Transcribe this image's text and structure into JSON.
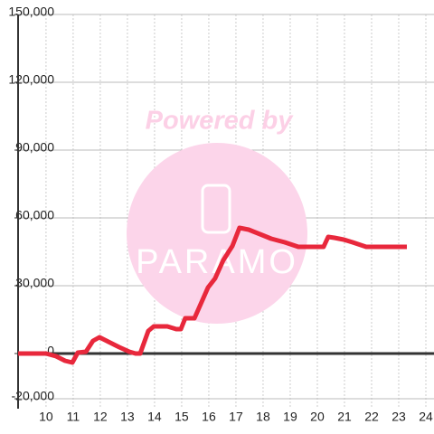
{
  "chart_data": {
    "type": "line",
    "x": [
      8.97,
      10,
      10.37,
      10.7,
      10.97,
      11.17,
      11.47,
      11.73,
      11.97,
      12.3,
      12.7,
      13.07,
      13.3,
      13.47,
      13.77,
      13.97,
      14.47,
      14.8,
      14.97,
      15.13,
      15.47,
      15.97,
      16.23,
      16.53,
      16.87,
      17.13,
      17.47,
      17.97,
      18.3,
      18.8,
      19.3,
      20.23,
      20.4,
      20.63,
      20.97,
      21.3,
      21.8,
      23.3
    ],
    "series": [
      {
        "color": "#e8283c",
        "values": [
          0,
          0,
          -1200,
          -3200,
          -4000,
          400,
          800,
          5600,
          7200,
          5200,
          2800,
          800,
          0,
          0,
          10000,
          12000,
          12000,
          10800,
          10800,
          15600,
          15600,
          29200,
          33200,
          41200,
          47600,
          55600,
          54800,
          52400,
          50800,
          49200,
          47200,
          47200,
          51600,
          51200,
          50400,
          49200,
          47200,
          47200
        ]
      }
    ],
    "xlim": [
      8.97,
      24.3
    ],
    "xticks": [
      10,
      11,
      12,
      13,
      14,
      15,
      16,
      17,
      18,
      19,
      20,
      21,
      22,
      23,
      24
    ],
    "ylim": [
      -20000,
      150000
    ],
    "yticks": [
      {
        "value": -20000,
        "label": "-20,000"
      },
      0,
      {
        "value": 30000,
        "label": "30,000"
      },
      {
        "value": 60000,
        "label": "60,000"
      },
      {
        "value": 90000,
        "label": "90,000"
      },
      {
        "value": 120000,
        "label": "120,000"
      },
      {
        "value": 150000,
        "label": "150,000"
      }
    ],
    "grid": true
  },
  "watermark": {
    "title": "Powered by",
    "brand": "PARAMO"
  }
}
